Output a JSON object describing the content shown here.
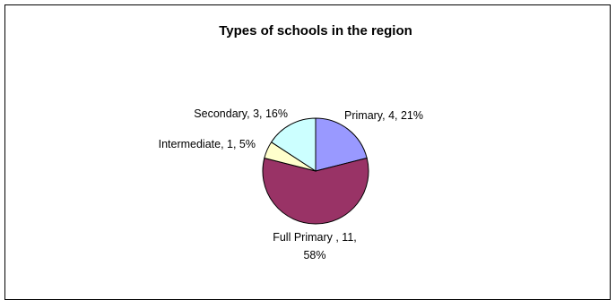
{
  "chart_data": {
    "type": "pie",
    "title": "Types of schools in the region",
    "slices": [
      {
        "name": "Primary",
        "value": 4,
        "percent": "21%",
        "color": "#9999ff",
        "label_lines": [
          "Primary, 4, 21%"
        ]
      },
      {
        "name": "Full Primary ",
        "value": 11,
        "percent": "58%",
        "color": "#993366",
        "label_lines": [
          "Full Primary , 11,",
          "58%"
        ]
      },
      {
        "name": "Intermediate",
        "value": 1,
        "percent": "5%",
        "color": "#ffffcc",
        "label_lines": [
          "Intermediate, 1, 5%"
        ]
      },
      {
        "name": "Secondary",
        "value": 3,
        "percent": "16%",
        "color": "#ccffff",
        "label_lines": [
          "Secondary, 3, 16%"
        ]
      }
    ],
    "start": "12 o'clock",
    "direction": "clockwise",
    "legend": "none"
  }
}
